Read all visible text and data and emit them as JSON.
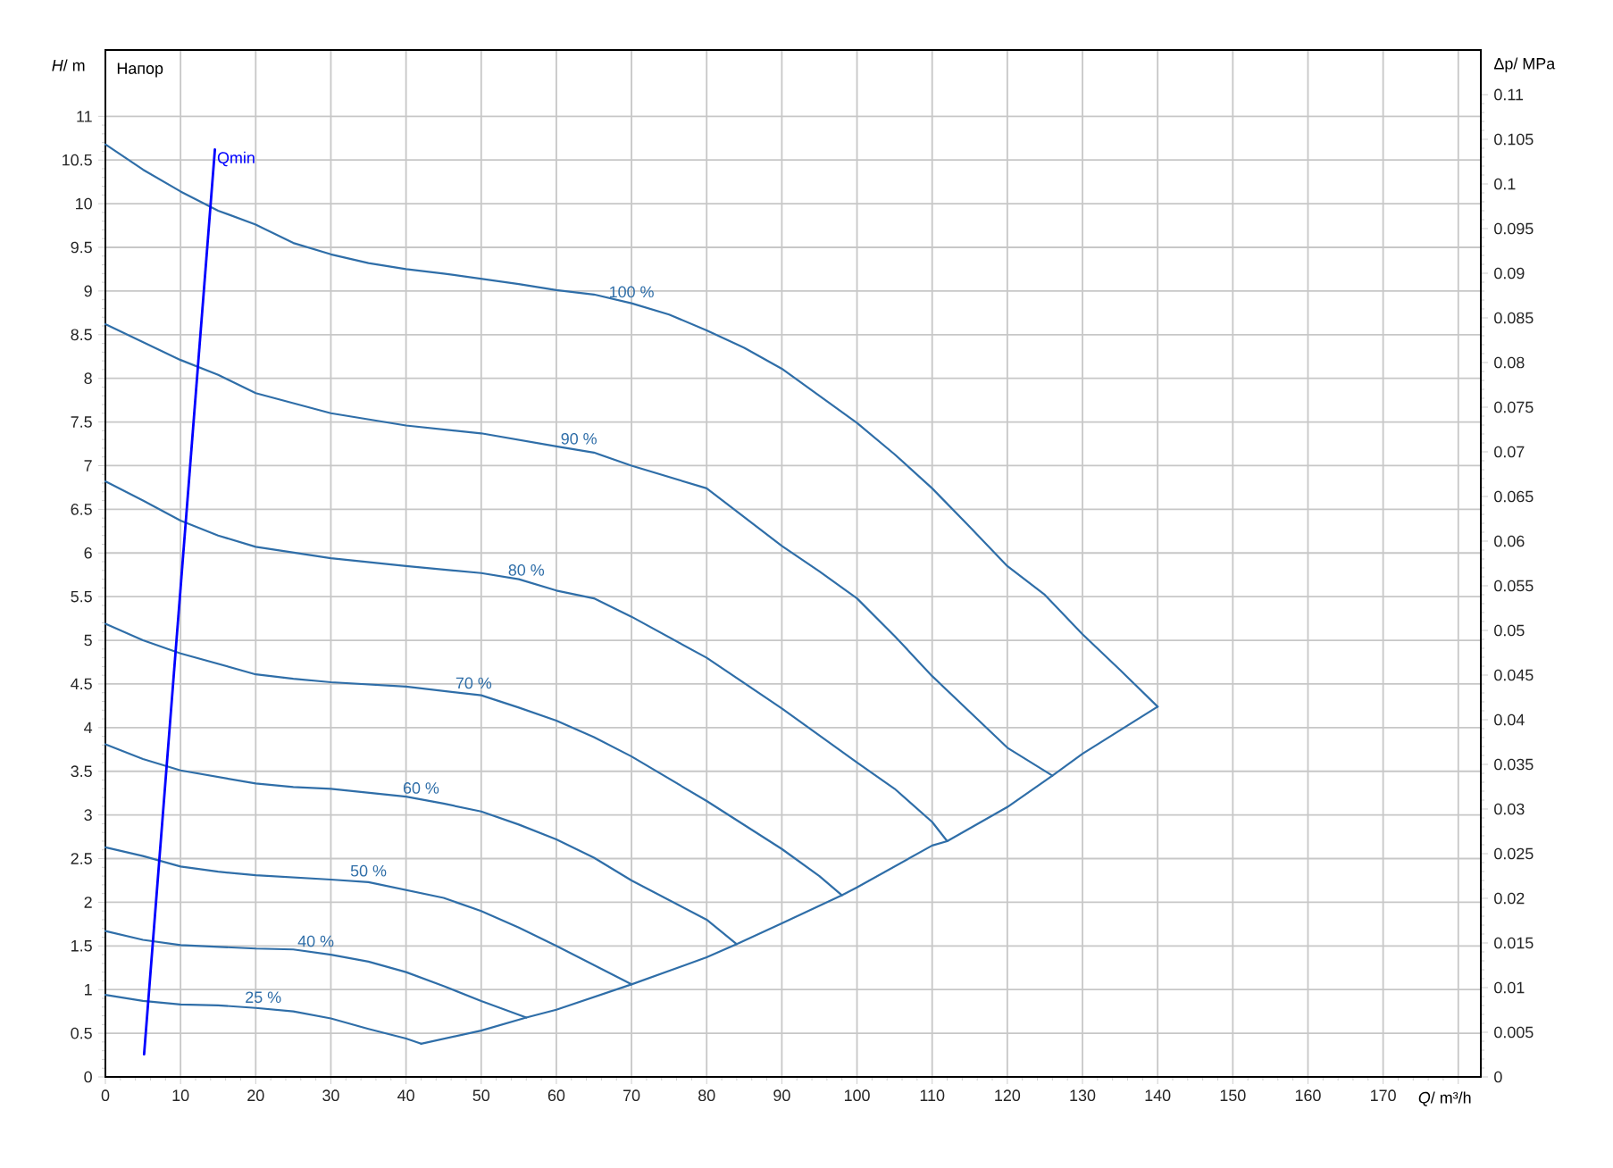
{
  "chart_data": {
    "type": "line",
    "title": "Напор",
    "xlabel": "*Q*/ m³/h",
    "ylabel": "*H*/ m",
    "y2label": "Δp/ MPa",
    "xlim": [
      0,
      183
    ],
    "ylim": [
      0,
      11.76
    ],
    "y2lim": [
      0,
      0.115
    ],
    "xticks": [
      0,
      10,
      20,
      30,
      40,
      50,
      60,
      70,
      80,
      90,
      100,
      110,
      120,
      130,
      140,
      150,
      160,
      170,
      {
        "value": 180,
        "label": null
      }
    ],
    "yticks": [
      0,
      0.5,
      1,
      1.5,
      2,
      2.5,
      3,
      3.5,
      4,
      4.5,
      5,
      5.5,
      6,
      6.5,
      7,
      7.5,
      8,
      8.5,
      9,
      9.5,
      10,
      10.5,
      11
    ],
    "y2ticks": [
      0,
      0.005,
      0.01,
      0.015,
      0.02,
      0.025,
      0.03,
      0.035,
      0.04,
      0.045,
      0.05,
      0.055,
      0.06,
      0.065,
      0.07,
      0.075,
      0.08,
      0.085,
      0.09,
      0.095,
      0.1,
      0.105,
      0.11
    ],
    "grid": true,
    "series": [
      {
        "name": "100 %",
        "color": "#2f6ea8",
        "x": [
          0,
          5,
          10,
          15,
          20,
          25,
          30,
          35,
          40,
          45,
          50,
          55,
          60,
          65,
          70,
          75,
          80,
          85,
          90,
          100,
          105,
          110,
          115,
          120,
          125,
          130,
          135,
          140
        ],
        "values": [
          10.68,
          10.39,
          10.14,
          9.92,
          9.76,
          9.55,
          9.42,
          9.32,
          9.25,
          9.2,
          9.14,
          9.08,
          9.01,
          8.96,
          8.86,
          8.73,
          8.55,
          8.35,
          8.11,
          7.49,
          7.13,
          6.74,
          6.3,
          5.85,
          5.52,
          5.07,
          4.66,
          4.24
        ]
      },
      {
        "name": "90 %",
        "color": "#2f6ea8",
        "x": [
          0,
          10,
          15,
          20,
          30,
          40,
          50,
          60,
          65,
          70,
          80,
          90,
          95,
          100,
          105,
          110,
          115,
          120,
          126
        ],
        "values": [
          8.62,
          8.21,
          8.04,
          7.83,
          7.6,
          7.46,
          7.37,
          7.22,
          7.15,
          7.0,
          6.74,
          6.08,
          5.79,
          5.48,
          5.05,
          4.59,
          4.18,
          3.77,
          3.45
        ]
      },
      {
        "name": "80 %",
        "color": "#2f6ea8",
        "x": [
          0,
          5,
          10,
          15,
          20,
          30,
          40,
          50,
          55,
          60,
          65,
          70,
          80,
          90,
          100,
          105,
          110,
          112
        ],
        "values": [
          6.82,
          6.6,
          6.37,
          6.2,
          6.07,
          5.94,
          5.85,
          5.77,
          5.7,
          5.57,
          5.48,
          5.27,
          4.8,
          4.22,
          3.6,
          3.3,
          2.92,
          2.7
        ]
      },
      {
        "name": "70 %",
        "color": "#2f6ea8",
        "x": [
          0,
          5,
          10,
          20,
          25,
          30,
          40,
          45,
          50,
          55,
          60,
          65,
          70,
          80,
          90,
          95,
          98
        ],
        "values": [
          5.19,
          5.0,
          4.85,
          4.61,
          4.56,
          4.52,
          4.47,
          4.42,
          4.37,
          4.23,
          4.08,
          3.89,
          3.67,
          3.16,
          2.61,
          2.3,
          2.08
        ]
      },
      {
        "name": "60 %",
        "color": "#2f6ea8",
        "x": [
          0,
          5,
          10,
          20,
          25,
          30,
          40,
          45,
          50,
          55,
          60,
          65,
          70,
          80,
          84
        ],
        "values": [
          3.81,
          3.64,
          3.51,
          3.36,
          3.32,
          3.3,
          3.21,
          3.13,
          3.04,
          2.89,
          2.72,
          2.51,
          2.25,
          1.8,
          1.52
        ]
      },
      {
        "name": "50 %",
        "color": "#2f6ea8",
        "x": [
          0,
          5,
          10,
          15,
          20,
          30,
          35,
          40,
          45,
          50,
          55,
          60,
          65,
          70
        ],
        "values": [
          2.63,
          2.53,
          2.41,
          2.35,
          2.31,
          2.26,
          2.23,
          2.14,
          2.05,
          1.9,
          1.71,
          1.5,
          1.28,
          1.06
        ]
      },
      {
        "name": "40 %",
        "color": "#2f6ea8",
        "x": [
          0,
          5,
          10,
          20,
          25,
          30,
          35,
          40,
          45,
          50,
          56
        ],
        "values": [
          1.67,
          1.57,
          1.51,
          1.47,
          1.46,
          1.4,
          1.32,
          1.2,
          1.04,
          0.87,
          0.68
        ]
      },
      {
        "name": "25 %",
        "color": "#2f6ea8",
        "x": [
          0,
          5,
          10,
          15,
          20,
          25,
          30,
          35,
          40,
          42
        ],
        "values": [
          0.94,
          0.87,
          0.83,
          0.82,
          0.79,
          0.75,
          0.67,
          0.55,
          0.44,
          0.38
        ]
      },
      {
        "color": "#2f6ea8",
        "x": [
          42,
          50,
          56,
          60,
          70,
          80,
          84,
          90,
          98,
          100,
          110,
          112,
          120,
          126,
          130,
          140
        ],
        "values": [
          0.38,
          0.53,
          0.68,
          0.77,
          1.06,
          1.37,
          1.52,
          1.76,
          2.08,
          2.17,
          2.65,
          2.7,
          3.09,
          3.45,
          3.7,
          4.24
        ]
      },
      {
        "name": "Qmin",
        "color": "#0000ff",
        "x": [
          5.15,
          14.57
        ],
        "values": [
          0.26,
          10.62
        ]
      }
    ]
  }
}
